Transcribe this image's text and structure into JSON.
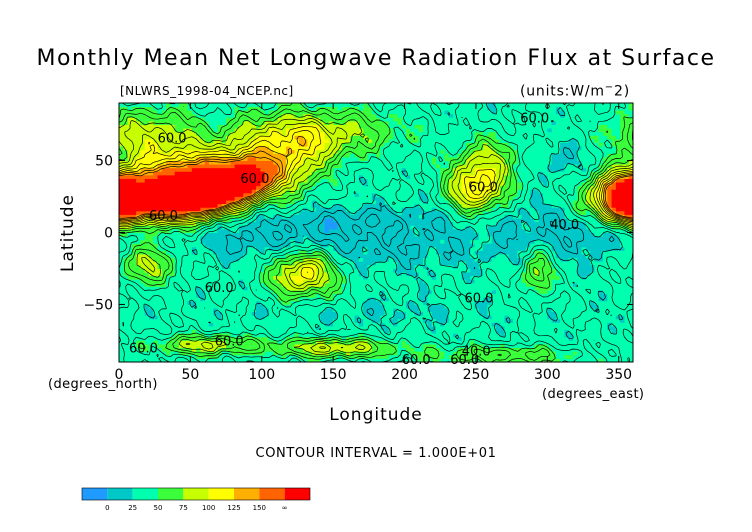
{
  "chart_data": {
    "type": "heatmap",
    "title": "Monthly Mean Net Longwave Radiation Flux at Surface",
    "subtitle": "[NLWRS_1998-04_NCEP.nc]",
    "units": "(units:W/m^2)",
    "xlabel": "Longitude",
    "ylabel": "Latitude",
    "x_unit_label": "(degrees_east)",
    "y_unit_label": "(degrees_north)",
    "xlim": [
      0,
      360
    ],
    "ylim": [
      -90,
      90
    ],
    "x_ticks": [
      0,
      50,
      100,
      150,
      200,
      250,
      300,
      350
    ],
    "y_ticks": [
      -50,
      0,
      50
    ],
    "contour_interval_text": "CONTOUR INTERVAL = 1.000E+01",
    "colorbar": {
      "levels": [
        "0",
        "25",
        "50",
        "75",
        "100",
        "125",
        "150",
        "∞"
      ],
      "colors": [
        "#1f9bff",
        "#00c8c8",
        "#00ffaf",
        "#3cff3c",
        "#c8ff00",
        "#ffff00",
        "#ffaf00",
        "#ff6400",
        "#ff0000"
      ]
    },
    "contour_labels": [
      {
        "text": "60.0",
        "lon": 27,
        "lat": 66
      },
      {
        "text": "60.0",
        "lon": 281,
        "lat": 80
      },
      {
        "text": "60.0",
        "lon": 85,
        "lat": 38
      },
      {
        "text": "60.0",
        "lon": 21,
        "lat": 12
      },
      {
        "text": "60.0",
        "lon": 245,
        "lat": 32
      },
      {
        "text": "40.0",
        "lon": 302,
        "lat": 6
      },
      {
        "text": "60.0",
        "lon": 60,
        "lat": -38
      },
      {
        "text": "60.0",
        "lon": 242,
        "lat": -45
      },
      {
        "text": "60.0",
        "lon": 7,
        "lat": -80
      },
      {
        "text": "60.0",
        "lon": 67,
        "lat": -75
      },
      {
        "text": "60.0",
        "lon": 198,
        "lat": -88
      },
      {
        "text": "60.0",
        "lon": 232,
        "lat": -88
      },
      {
        "text": "40.0",
        "lon": 240,
        "lat": -82
      }
    ],
    "field_features": [
      {
        "lon": 0,
        "lat": 25,
        "value": 140,
        "w": 22,
        "h": 12
      },
      {
        "lon": 20,
        "lat": 25,
        "value": 155,
        "w": 25,
        "h": 12
      },
      {
        "lon": 45,
        "lat": 25,
        "value": 150,
        "w": 20,
        "h": 12
      },
      {
        "lon": 55,
        "lat": 32,
        "value": 145,
        "w": 14,
        "h": 10
      },
      {
        "lon": 70,
        "lat": 28,
        "value": 140,
        "w": 16,
        "h": 10
      },
      {
        "lon": 87,
        "lat": 35,
        "value": 150,
        "w": 10,
        "h": 8
      },
      {
        "lon": 90,
        "lat": 45,
        "value": 120,
        "w": 22,
        "h": 12
      },
      {
        "lon": 108,
        "lat": 40,
        "value": 110,
        "w": 20,
        "h": 12
      },
      {
        "lon": 40,
        "lat": 50,
        "value": 105,
        "w": 28,
        "h": 10
      },
      {
        "lon": 20,
        "lat": 70,
        "value": 110,
        "w": 25,
        "h": 12
      },
      {
        "lon": 110,
        "lat": 70,
        "value": 100,
        "w": 28,
        "h": 12
      },
      {
        "lon": 130,
        "lat": 60,
        "value": 95,
        "w": 20,
        "h": 12
      },
      {
        "lon": 165,
        "lat": 70,
        "value": 90,
        "w": 30,
        "h": 12
      },
      {
        "lon": 250,
        "lat": 30,
        "value": 140,
        "w": 14,
        "h": 12
      },
      {
        "lon": 262,
        "lat": 50,
        "value": 105,
        "w": 18,
        "h": 12
      },
      {
        "lon": 355,
        "lat": 22,
        "value": 145,
        "w": 12,
        "h": 12
      },
      {
        "lon": 20,
        "lat": -22,
        "value": 110,
        "w": 14,
        "h": 10
      },
      {
        "lon": 130,
        "lat": -25,
        "value": 110,
        "w": 14,
        "h": 10
      },
      {
        "lon": 128,
        "lat": -34,
        "value": 95,
        "w": 18,
        "h": 10
      },
      {
        "lon": 293,
        "lat": -27,
        "value": 105,
        "w": 8,
        "h": 12
      },
      {
        "lon": 140,
        "lat": 0,
        "value": 40,
        "w": 45,
        "h": 10
      },
      {
        "lon": 180,
        "lat": 8,
        "value": 42,
        "w": 40,
        "h": 8
      },
      {
        "lon": 300,
        "lat": 0,
        "value": 38,
        "w": 40,
        "h": 15
      },
      {
        "lon": 80,
        "lat": -5,
        "value": 45,
        "w": 30,
        "h": 10
      },
      {
        "lon": 200,
        "lat": -15,
        "value": 45,
        "w": 40,
        "h": 10
      },
      {
        "lon": 350,
        "lat": 0,
        "value": 45,
        "w": 20,
        "h": 10
      },
      {
        "lon": 300,
        "lat": 50,
        "value": 40,
        "w": 25,
        "h": 10
      },
      {
        "lon": 180,
        "lat": -55,
        "value": 48,
        "w": 60,
        "h": 6
      },
      {
        "lon": 60,
        "lat": -78,
        "value": 110,
        "w": 25,
        "h": 5
      },
      {
        "lon": 150,
        "lat": -80,
        "value": 115,
        "w": 30,
        "h": 5
      },
      {
        "lon": 270,
        "lat": -85,
        "value": 95,
        "w": 40,
        "h": 5
      }
    ],
    "background_value": 58
  }
}
